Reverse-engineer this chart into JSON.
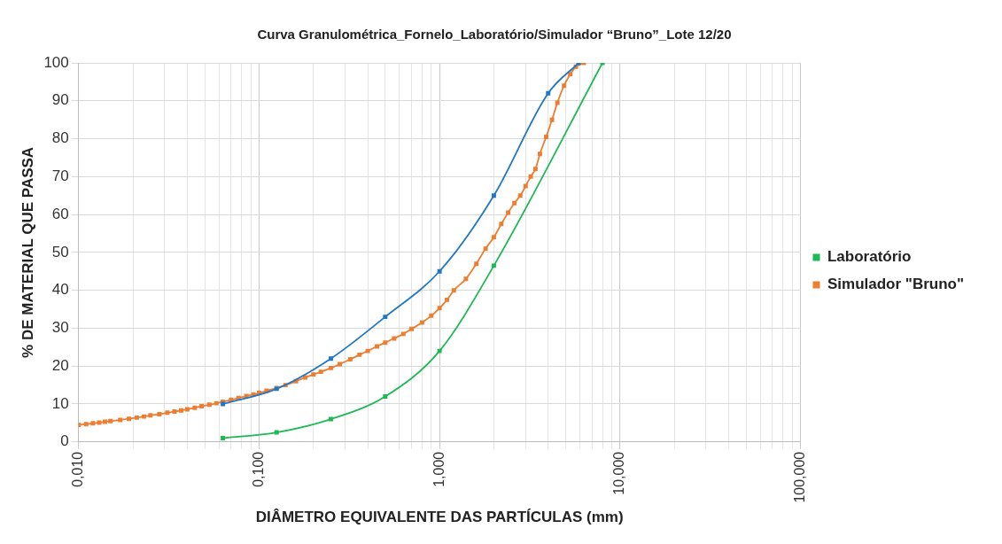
{
  "chart_data": {
    "type": "line",
    "title": "Curva Granulométrica_Fornelo_Laboratório/Simulador “Bruno”_Lote 12/20",
    "xlabel": "DIÂMETRO EQUIVALENTE DAS PARTÍCULAS (mm)",
    "ylabel": "% DE MATERIAL QUE PASSA",
    "log": "x",
    "grid": true,
    "legend": "right",
    "marker": "square",
    "line_style": "solid",
    "xlim": [
      0.01,
      100
    ],
    "ylim": [
      0,
      100
    ],
    "yticks": [
      0,
      10,
      20,
      30,
      40,
      50,
      60,
      70,
      80,
      90,
      100
    ],
    "xticks": [
      {
        "value": 0.01,
        "label": "0,010"
      },
      {
        "value": 0.02,
        "label": null
      },
      {
        "value": 0.03,
        "label": null
      },
      {
        "value": 0.04,
        "label": null
      },
      {
        "value": 0.05,
        "label": null
      },
      {
        "value": 0.06,
        "label": null
      },
      {
        "value": 0.07,
        "label": null
      },
      {
        "value": 0.08,
        "label": null
      },
      {
        "value": 0.09,
        "label": null
      },
      {
        "value": 0.1,
        "label": "0,100"
      },
      {
        "value": 0.2,
        "label": null
      },
      {
        "value": 0.3,
        "label": null
      },
      {
        "value": 0.4,
        "label": null
      },
      {
        "value": 0.5,
        "label": null
      },
      {
        "value": 0.6,
        "label": null
      },
      {
        "value": 0.7,
        "label": null
      },
      {
        "value": 0.8,
        "label": null
      },
      {
        "value": 0.9,
        "label": null
      },
      {
        "value": 1,
        "label": "1,000"
      },
      {
        "value": 2,
        "label": null
      },
      {
        "value": 3,
        "label": null
      },
      {
        "value": 4,
        "label": null
      },
      {
        "value": 5,
        "label": null
      },
      {
        "value": 6,
        "label": null
      },
      {
        "value": 7,
        "label": null
      },
      {
        "value": 8,
        "label": null
      },
      {
        "value": 9,
        "label": null
      },
      {
        "value": 10,
        "label": "10,000"
      },
      {
        "value": 20,
        "label": null
      },
      {
        "value": 30,
        "label": null
      },
      {
        "value": 40,
        "label": null
      },
      {
        "value": 50,
        "label": null
      },
      {
        "value": 60,
        "label": null
      },
      {
        "value": 70,
        "label": null
      },
      {
        "value": 80,
        "label": null
      },
      {
        "value": 90,
        "label": null
      },
      {
        "value": 100,
        "label": "100,000"
      }
    ],
    "series": [
      {
        "name": "Laboratório",
        "color": "#1db954",
        "x": [
          0.063,
          0.125,
          0.25,
          0.5,
          1,
          2,
          8
        ],
        "values": [
          1,
          2.5,
          6,
          12,
          24,
          46.5,
          100
        ]
      },
      {
        "name": "Simulador \"Bruno\"",
        "color": "#ed7d31",
        "x": [
          0.01,
          0.011,
          0.012,
          0.013,
          0.014,
          0.015,
          0.017,
          0.019,
          0.021,
          0.023,
          0.025,
          0.028,
          0.031,
          0.034,
          0.037,
          0.04,
          0.044,
          0.048,
          0.053,
          0.058,
          0.063,
          0.07,
          0.077,
          0.085,
          0.093,
          0.1,
          0.11,
          0.125,
          0.14,
          0.16,
          0.18,
          0.2,
          0.22,
          0.25,
          0.28,
          0.32,
          0.36,
          0.4,
          0.45,
          0.5,
          0.56,
          0.63,
          0.7,
          0.8,
          0.9,
          1,
          1.1,
          1.2,
          1.4,
          1.6,
          1.8,
          2,
          2.2,
          2.4,
          2.6,
          2.8,
          3,
          3.2,
          3.4,
          3.6,
          3.9,
          4.2,
          4.5,
          4.9,
          5.3,
          5.7,
          6.3
        ],
        "values": [
          4.5,
          4.7,
          4.9,
          5.1,
          5.3,
          5.5,
          5.8,
          6.1,
          6.4,
          6.7,
          7,
          7.3,
          7.7,
          8,
          8.3,
          8.6,
          9,
          9.4,
          9.8,
          10.2,
          10.6,
          11.1,
          11.6,
          12.1,
          12.5,
          12.9,
          13.5,
          14.2,
          15,
          16,
          17,
          17.8,
          18.5,
          19.5,
          20.5,
          21.8,
          23,
          24,
          25.2,
          26.2,
          27.3,
          28.5,
          29.8,
          31.5,
          33.3,
          35.3,
          37.5,
          40,
          43,
          47,
          51,
          54,
          57.5,
          60.5,
          63,
          65,
          67.5,
          70,
          72,
          76,
          80.5,
          85,
          89.5,
          94,
          97,
          99,
          100
        ]
      },
      {
        "color": "#1f77c8",
        "x": [
          0.063,
          0.125,
          0.25,
          0.5,
          1,
          2,
          4,
          5.9
        ],
        "values": [
          10,
          14,
          22,
          33,
          45,
          65,
          92,
          100
        ]
      }
    ]
  }
}
